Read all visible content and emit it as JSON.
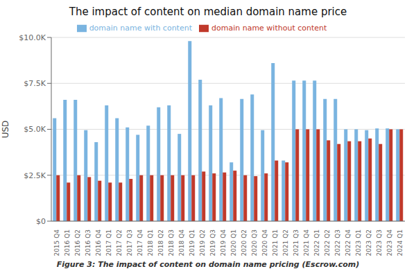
{
  "chart_data": {
    "type": "bar",
    "title": "The impact of content on median domain name price",
    "ylabel": "USD",
    "caption": "Figure 3: The impact of content on domain name pricing (Escrow.com)",
    "categories": [
      "2015 Q4",
      "2016 Q1",
      "2016 Q2",
      "2016 Q3",
      "2016 Q4",
      "2017 Q1",
      "2017 Q2",
      "2017 Q3",
      "2017 Q4",
      "2018 Q1",
      "2018 Q2",
      "2018 Q3",
      "2018 Q4",
      "2019 Q1",
      "2019 Q2",
      "2019 Q3",
      "2019 Q4",
      "2020 Q1",
      "2020 Q2",
      "2020 Q3",
      "2020 Q4",
      "2021 Q1",
      "2021 Q2",
      "2021 Q3",
      "2021 Q4",
      "2022 Q1",
      "2022 Q2",
      "2022 Q3",
      "2022 Q4",
      "2023 Q1",
      "2023 Q2",
      "2023 Q3",
      "2023 Q4",
      "2024 Q1"
    ],
    "series": [
      {
        "name": "domain name with content",
        "color": "#7ab4e0",
        "values": [
          5600,
          6600,
          6600,
          4950,
          4300,
          6300,
          5600,
          5100,
          4700,
          5200,
          6200,
          6300,
          4750,
          9800,
          7700,
          6300,
          6700,
          3200,
          6650,
          6900,
          4950,
          8600,
          3300,
          7650,
          7650,
          7650,
          6650,
          6650,
          5000,
          5000,
          4950,
          5050,
          5050,
          5000
        ]
      },
      {
        "name": "domain name without content",
        "color": "#c0392b",
        "values": [
          2500,
          2100,
          2500,
          2400,
          2200,
          2100,
          2100,
          2300,
          2500,
          2500,
          2500,
          2500,
          2500,
          2500,
          2700,
          2600,
          2650,
          2750,
          2500,
          2450,
          2600,
          3300,
          3200,
          5000,
          5000,
          5000,
          4400,
          4200,
          4350,
          4350,
          4500,
          4200,
          5000,
          5000
        ]
      }
    ],
    "ylim": [
      0,
      10000
    ],
    "yticks": [
      {
        "value": 0,
        "label": "$0"
      },
      {
        "value": 2500,
        "label": "$2.5K"
      },
      {
        "value": 5000,
        "label": "$5.0K"
      },
      {
        "value": 7500,
        "label": "$7.5K"
      },
      {
        "value": 10000,
        "label": "$10.0K"
      }
    ],
    "grid": true,
    "legend": "top"
  }
}
